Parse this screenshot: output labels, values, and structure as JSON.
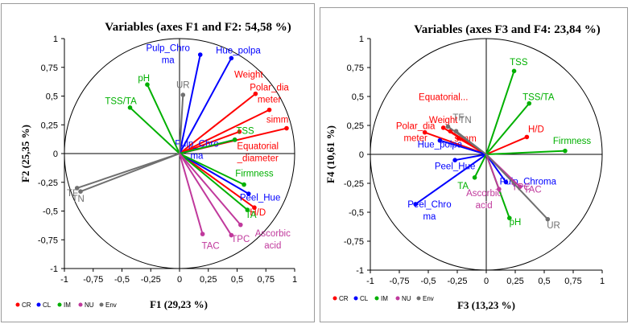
{
  "colors": {
    "CR": "#ff0000",
    "CL": "#0000ff",
    "IM": "#00b000",
    "NU": "#c0399c",
    "Env": "#707070"
  },
  "legend": [
    {
      "key": "CR",
      "label": "CR"
    },
    {
      "key": "CL",
      "label": "CL"
    },
    {
      "key": "IM",
      "label": "IM"
    },
    {
      "key": "NU",
      "label": "NU"
    },
    {
      "key": "Env",
      "label": "Env"
    }
  ],
  "chart_data": [
    {
      "type": "scatter",
      "title": "Variables (axes F1 and F2: 54,58 %)",
      "xlabel": "F1 (29,23 %)",
      "ylabel": "F2 (25,35 %)",
      "xlim": [
        -1,
        1
      ],
      "ylim": [
        -1,
        1
      ],
      "xticks": [
        "-1",
        "-0,75",
        "-0,5",
        "-0,25",
        "0",
        "0,25",
        "0,5",
        "0,75",
        "1"
      ],
      "yticks": [
        "-1",
        "-0,75",
        "-0,5",
        "-0,25",
        "0",
        "0,25",
        "0,5",
        "0,75",
        "1"
      ],
      "vectors": [
        {
          "name": "Weight",
          "group": "CR",
          "x": 0.66,
          "y": 0.52,
          "label": [
            "Weight"
          ],
          "lx": 0.6,
          "ly": 0.66
        },
        {
          "name": "Polar_diameter",
          "group": "CR",
          "x": 0.78,
          "y": 0.38,
          "label": [
            "Polar_dia",
            "meter"
          ],
          "lx": 0.78,
          "ly": 0.55
        },
        {
          "name": "simm",
          "group": "CR",
          "x": 0.93,
          "y": 0.22,
          "label": [
            "simm"
          ],
          "lx": 0.85,
          "ly": 0.27
        },
        {
          "name": "Equatorial_diameter",
          "group": "CR",
          "x": 0.52,
          "y": 0.19,
          "label": [
            "Equatorial",
            "_diameter"
          ],
          "lx": 0.68,
          "ly": 0.04
        },
        {
          "name": "H/D",
          "group": "CR",
          "x": 0.65,
          "y": -0.47,
          "label": [
            "H/D"
          ],
          "lx": 0.68,
          "ly": -0.54
        },
        {
          "name": "Hue_polpa",
          "group": "CL",
          "x": 0.45,
          "y": 0.83,
          "label": [
            "Hue_polpa"
          ],
          "lx": 0.51,
          "ly": 0.87
        },
        {
          "name": "Pulp_Chroma",
          "group": "CL",
          "x": 0.18,
          "y": 0.86,
          "label": [
            "Pulp_Chro",
            "ma"
          ],
          "lx": -0.1,
          "ly": 0.89
        },
        {
          "name": "Pulp_Chroma_2",
          "group": "CL",
          "x": 0.48,
          "y": 0.12,
          "label": [
            "Pulp_Chro",
            "ma"
          ],
          "lx": 0.15,
          "ly": 0.06
        },
        {
          "name": "Peel_Hue",
          "group": "CL",
          "x": 0.6,
          "y": -0.35,
          "label": [
            "Peel_Hue"
          ],
          "lx": 0.7,
          "ly": -0.41
        },
        {
          "name": "pH",
          "group": "IM",
          "x": -0.28,
          "y": 0.6,
          "label": [
            "pH"
          ],
          "lx": -0.31,
          "ly": 0.63
        },
        {
          "name": "TSS/TA",
          "group": "IM",
          "x": -0.43,
          "y": 0.4,
          "label": [
            "TSS/TA"
          ],
          "lx": -0.51,
          "ly": 0.43
        },
        {
          "name": "TSS",
          "group": "IM",
          "x": 0.48,
          "y": 0.12,
          "label": [
            "TSS"
          ],
          "lx": 0.57,
          "ly": 0.17
        },
        {
          "name": "Firmness",
          "group": "IM",
          "x": 0.56,
          "y": -0.27,
          "label": [
            "Firmness"
          ],
          "lx": 0.65,
          "ly": -0.2
        },
        {
          "name": "TA",
          "group": "IM",
          "x": 0.59,
          "y": -0.49,
          "label": [
            "TA"
          ],
          "lx": 0.62,
          "ly": -0.56
        },
        {
          "name": "TAC",
          "group": "NU",
          "x": 0.2,
          "y": -0.7,
          "label": [
            "TAC"
          ],
          "lx": 0.27,
          "ly": -0.83
        },
        {
          "name": "TPC",
          "group": "NU",
          "x": 0.45,
          "y": -0.71,
          "label": [
            "TPC"
          ],
          "lx": 0.53,
          "ly": -0.77
        },
        {
          "name": "Ascorbic acid",
          "group": "NU",
          "x": 0.53,
          "y": -0.62,
          "label": [
            "Ascorbic",
            "acid"
          ],
          "lx": 0.81,
          "ly": -0.72
        },
        {
          "name": "UR",
          "group": "Env",
          "x": 0.03,
          "y": 0.51,
          "label": [
            "UR"
          ],
          "lx": 0.03,
          "ly": 0.57
        },
        {
          "name": "TF",
          "group": "Env",
          "x": -0.89,
          "y": -0.3,
          "label": [
            "TF"
          ],
          "lx": -0.93,
          "ly": -0.37
        },
        {
          "name": "TN",
          "group": "Env",
          "x": -0.86,
          "y": -0.33,
          "label": [
            "TN"
          ],
          "lx": -0.88,
          "ly": -0.42
        }
      ]
    },
    {
      "type": "scatter",
      "title": "Variables (axes F3 and F4: 23,84 %)",
      "xlabel": "F3 (13,23 %)",
      "ylabel": "F4 (10,61 %)",
      "xlim": [
        -1,
        1
      ],
      "ylim": [
        -1,
        1
      ],
      "xticks": [
        "-1",
        "-0,75",
        "-0,5",
        "-0,25",
        "0",
        "0,25",
        "0,5",
        "0,75",
        "1"
      ],
      "yticks": [
        "-1",
        "-0,75",
        "-0,5",
        "-0,25",
        "0",
        "0,25",
        "0,5",
        "0,75",
        "1"
      ],
      "vectors": [
        {
          "name": "Equatorial...",
          "group": "CR",
          "x": -0.31,
          "y": 0.2,
          "label": [
            "Equatorial..."
          ],
          "lx": -0.37,
          "ly": 0.47
        },
        {
          "name": "Weight",
          "group": "CR",
          "x": -0.37,
          "y": 0.23,
          "label": [
            "Weight"
          ],
          "lx": -0.37,
          "ly": 0.27
        },
        {
          "name": "Polar_diameter",
          "group": "CR",
          "x": -0.53,
          "y": 0.19,
          "label": [
            "Polar_dia",
            "meter"
          ],
          "lx": -0.61,
          "ly": 0.22
        },
        {
          "name": "simm",
          "group": "CR",
          "x": -0.24,
          "y": 0.14,
          "label": [
            "simm"
          ],
          "lx": -0.18,
          "ly": 0.11
        },
        {
          "name": "H/D",
          "group": "CR",
          "x": 0.35,
          "y": 0.15,
          "label": [
            "H/D"
          ],
          "lx": 0.43,
          "ly": 0.19
        },
        {
          "name": "Hue_polpa",
          "group": "CL",
          "x": -0.4,
          "y": 0.12,
          "label": [
            "Hue_polpa"
          ],
          "lx": -0.4,
          "ly": 0.06
        },
        {
          "name": "Peel_Hue",
          "group": "CL",
          "x": -0.27,
          "y": -0.05,
          "label": [
            "Peel_Hue"
          ],
          "lx": -0.27,
          "ly": -0.13
        },
        {
          "name": "Peel_Chroma",
          "group": "CL",
          "x": -0.61,
          "y": -0.43,
          "label": [
            "Peel_Chro",
            "ma"
          ],
          "lx": -0.49,
          "ly": -0.46
        },
        {
          "name": "Pulp_Chroma",
          "group": "CL",
          "x": 0.17,
          "y": -0.24,
          "label": [
            "Pulp_Chroma"
          ],
          "lx": 0.36,
          "ly": -0.26
        },
        {
          "name": "TSS",
          "group": "IM",
          "x": 0.24,
          "y": 0.72,
          "label": [
            "TSS"
          ],
          "lx": 0.28,
          "ly": 0.77
        },
        {
          "name": "TSS/TA",
          "group": "IM",
          "x": 0.37,
          "y": 0.44,
          "label": [
            "TSS/TA"
          ],
          "lx": 0.45,
          "ly": 0.47
        },
        {
          "name": "Firmness",
          "group": "IM",
          "x": 0.68,
          "y": 0.03,
          "label": [
            "Firmness"
          ],
          "lx": 0.74,
          "ly": 0.09
        },
        {
          "name": "TA",
          "group": "IM",
          "x": -0.1,
          "y": -0.2,
          "label": [
            "TA"
          ],
          "lx": -0.2,
          "ly": -0.3
        },
        {
          "name": "pH",
          "group": "IM",
          "x": 0.2,
          "y": -0.55,
          "label": [
            "pH"
          ],
          "lx": 0.25,
          "ly": -0.61
        },
        {
          "name": "TPC",
          "group": "NU",
          "x": 0.24,
          "y": -0.25,
          "label": [
            "TPC"
          ],
          "lx": 0.3,
          "ly": -0.31
        },
        {
          "name": "TAC",
          "group": "NU",
          "x": 0.29,
          "y": -0.28,
          "label": [
            "TAC"
          ],
          "lx": 0.4,
          "ly": -0.33
        },
        {
          "name": "Ascorbic acid",
          "group": "NU",
          "x": 0.11,
          "y": -0.3,
          "label": [
            "Ascorbic",
            "acid"
          ],
          "lx": -0.02,
          "ly": -0.36
        },
        {
          "name": "UR",
          "group": "Env",
          "x": 0.53,
          "y": -0.56,
          "label": [
            "UR"
          ],
          "lx": 0.58,
          "ly": -0.64
        },
        {
          "name": "TF",
          "group": "Env",
          "x": -0.33,
          "y": 0.24,
          "label": [
            "TF"
          ],
          "lx": -0.24,
          "ly": 0.29
        },
        {
          "name": "TN",
          "group": "Env",
          "x": -0.26,
          "y": 0.2,
          "label": [
            "TN"
          ],
          "lx": -0.18,
          "ly": 0.27
        }
      ]
    }
  ]
}
